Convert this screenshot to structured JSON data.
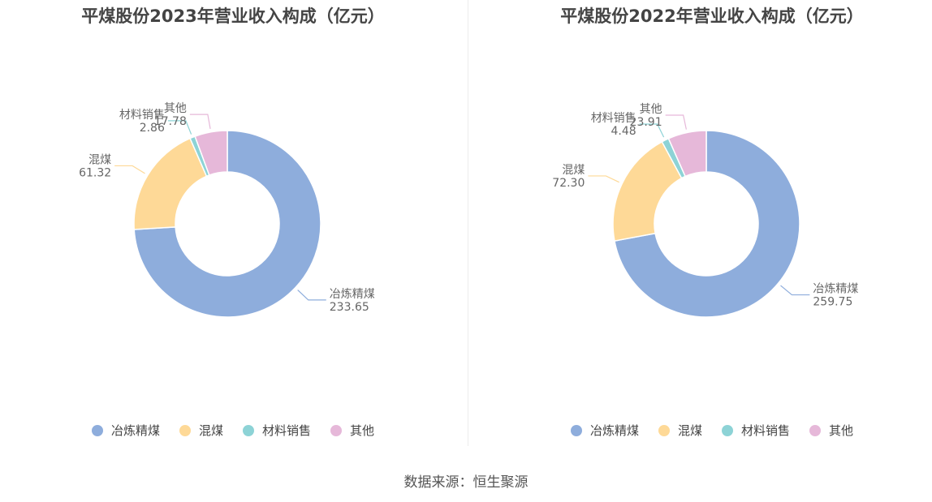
{
  "colors": [
    "#8eaddc",
    "#fed997",
    "#8dd3d6",
    "#e6b8d9"
  ],
  "source": "数据来源：恒生聚源",
  "chart_data": [
    {
      "type": "pie",
      "donut": true,
      "title": "平煤股份2023年营业收入构成（亿元）",
      "categories": [
        "冶炼精煤",
        "混煤",
        "材料销售",
        "其他"
      ],
      "values": [
        233.65,
        61.32,
        2.86,
        17.78
      ],
      "value_labels": [
        "233.65",
        "61.32",
        "2.86",
        "17.78"
      ],
      "legend": "bottom"
    },
    {
      "type": "pie",
      "donut": true,
      "title": "平煤股份2022年营业收入构成（亿元）",
      "categories": [
        "冶炼精煤",
        "混煤",
        "材料销售",
        "其他"
      ],
      "values": [
        259.75,
        72.3,
        4.48,
        23.91
      ],
      "value_labels": [
        "259.75",
        "72.30",
        "4.48",
        "23.91"
      ],
      "legend": "bottom"
    }
  ]
}
